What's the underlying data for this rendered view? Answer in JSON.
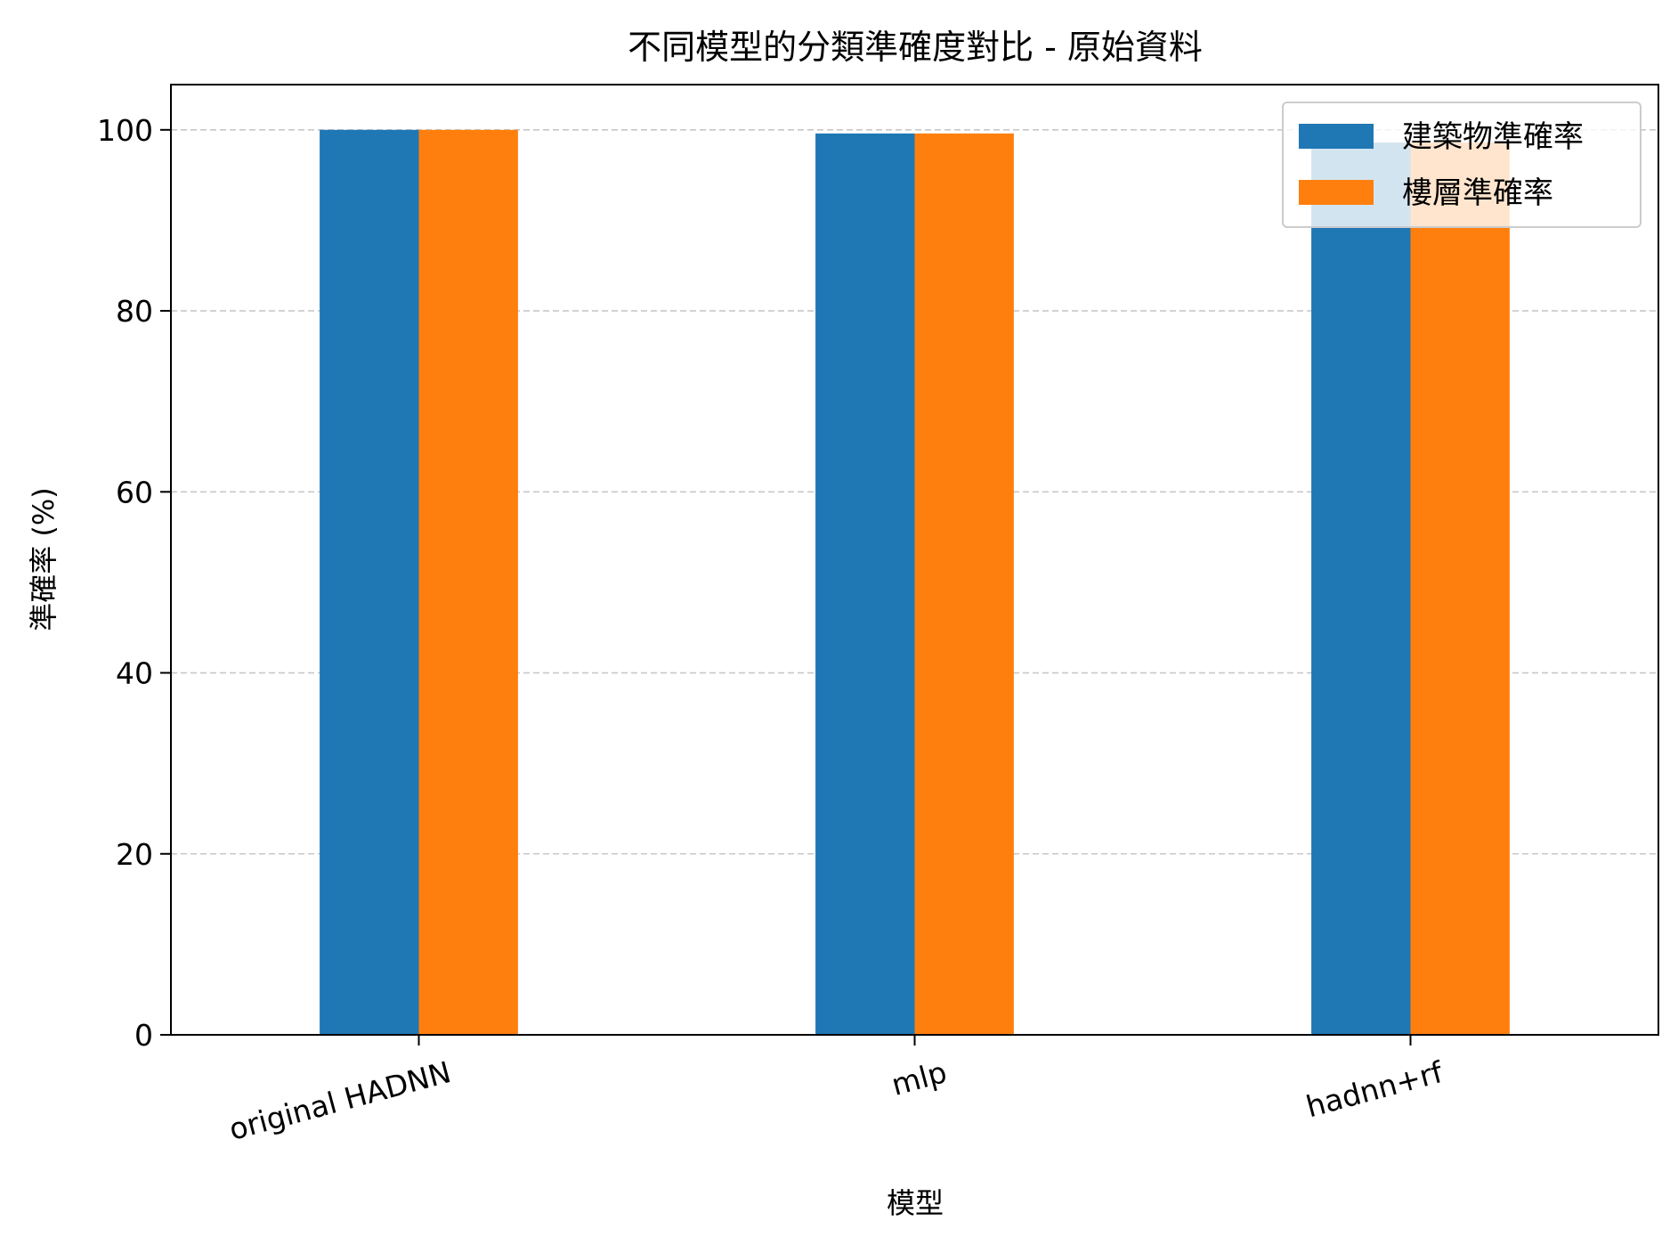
{
  "chart_data": {
    "type": "bar",
    "title": "不同模型的分類準確度對比 - 原始資料",
    "xlabel": "模型",
    "ylabel": "準確率 (%)",
    "categories": [
      "original HADNN",
      "mlp",
      "hadnn+rf"
    ],
    "series": [
      {
        "name": "建築物準確率",
        "color": "#1f77b4",
        "values": [
          100.0,
          99.6,
          98.6
        ]
      },
      {
        "name": "樓層準確率",
        "color": "#ff7f0e",
        "values": [
          100.0,
          99.6,
          98.6
        ]
      }
    ],
    "ylim": [
      0,
      105
    ],
    "yticks": [
      0,
      20,
      40,
      60,
      80,
      100
    ],
    "grid": "y-dashed",
    "legend": "top-right"
  }
}
